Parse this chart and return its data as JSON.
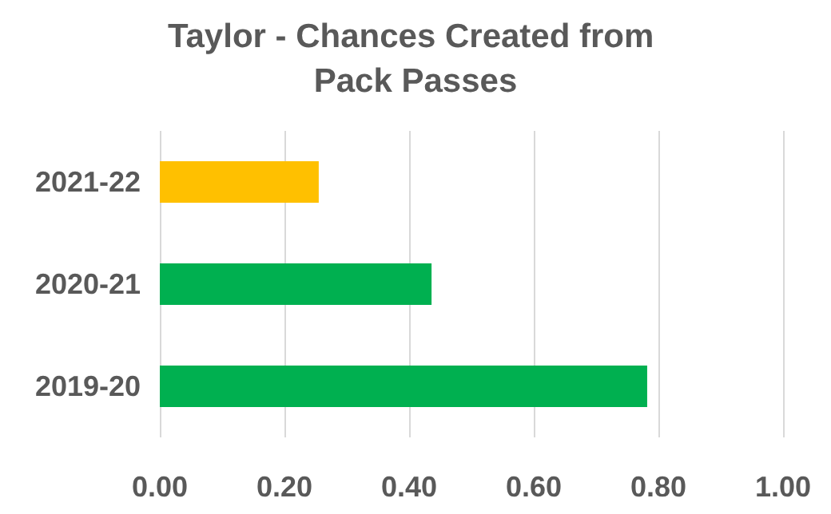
{
  "chart_data": {
    "type": "bar",
    "orientation": "horizontal",
    "title": "Taylor - Chances Created from Pack Passes",
    "categories": [
      "2021-22",
      "2020-21",
      "2019-20"
    ],
    "values": [
      0.255,
      0.436,
      0.782
    ],
    "colors": [
      "#ffc000",
      "#00b050",
      "#00b050"
    ],
    "xlim": [
      0,
      1
    ],
    "xticks": [
      {
        "value": 0,
        "label": "0.00"
      },
      {
        "value": 0.2,
        "label": "0.20"
      },
      {
        "value": 0.4,
        "label": "0.40"
      },
      {
        "value": 0.6,
        "label": "0.60"
      },
      {
        "value": 0.8,
        "label": "0.80"
      },
      {
        "value": 1,
        "label": "1.00"
      }
    ],
    "grid": "x"
  }
}
